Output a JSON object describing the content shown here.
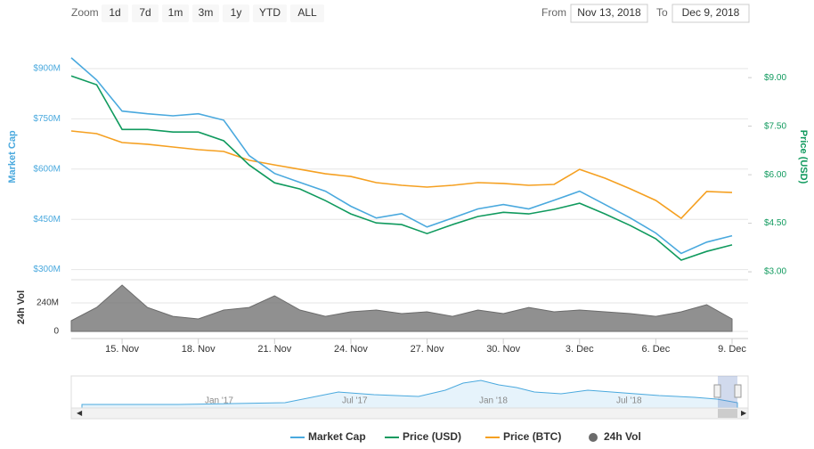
{
  "toolbar": {
    "zoom_label": "Zoom",
    "buttons": [
      "1d",
      "7d",
      "1m",
      "3m",
      "1y",
      "YTD",
      "ALL"
    ],
    "from_label": "From",
    "from_value": "Nov 13, 2018",
    "to_label": "To",
    "to_value": "Dec 9, 2018"
  },
  "navigator": {
    "labels": [
      "Jan '17",
      "Jul '17",
      "Jan '18",
      "Jul '18"
    ]
  },
  "chart_data": {
    "type": "line",
    "categories": [
      null,
      null,
      "15. Nov",
      null,
      null,
      "18. Nov",
      null,
      null,
      "21. Nov",
      null,
      null,
      "24. Nov",
      null,
      null,
      "27. Nov",
      null,
      null,
      "30. Nov",
      null,
      null,
      "3. Dec",
      null,
      null,
      "6. Dec",
      null,
      null,
      "9. Dec"
    ],
    "ylabel": "Market Cap",
    "y2label": "Price (USD)",
    "vol_label": "24h Vol",
    "ylim": [
      275000000,
      985000000
    ],
    "yticks": [
      {
        "value": 300000000,
        "label": "$300M"
      },
      {
        "value": 450000000,
        "label": "$450M"
      },
      {
        "value": 600000000,
        "label": "$600M"
      },
      {
        "value": 750000000,
        "label": "$750M"
      },
      {
        "value": 900000000,
        "label": "$900M"
      }
    ],
    "y2lim": [
      2.81,
      10.16
    ],
    "y2ticks": [
      {
        "value": 3,
        "label": "$3.00"
      },
      {
        "value": 4.5,
        "label": "$4.50"
      },
      {
        "value": 6,
        "label": "$6.00"
      },
      {
        "value": 7.5,
        "label": "$7.50"
      },
      {
        "value": 9,
        "label": "$9.00"
      }
    ],
    "y3lim": [
      0.0005,
      0.002
    ],
    "vol_ylim": [
      0,
      405000000
    ],
    "vol_yticks": [
      0,
      {
        "value": 240000000,
        "label": "240M"
      }
    ],
    "grid": true,
    "series": [
      {
        "name": "Market Cap",
        "color": "#4aa9de",
        "axis": "y",
        "values": [
          932000000,
          866000000,
          773000000,
          765000000,
          759000000,
          765000000,
          746000000,
          640000000,
          587000000,
          560000000,
          534000000,
          489000000,
          454000000,
          467000000,
          427000000,
          454000000,
          481000000,
          494000000,
          481000000,
          507000000,
          534000000,
          494000000,
          454000000,
          409000000,
          348000000,
          382000000,
          401000000
        ]
      },
      {
        "name": "Price (USD)",
        "color": "#109a5e",
        "axis": "y2",
        "values": [
          9.05,
          8.78,
          7.4,
          7.4,
          7.32,
          7.32,
          7.05,
          6.3,
          5.75,
          5.56,
          5.2,
          4.79,
          4.51,
          4.46,
          4.18,
          4.46,
          4.71,
          4.84,
          4.79,
          4.93,
          5.12,
          4.79,
          4.43,
          4.02,
          3.36,
          3.63,
          3.83
        ]
      },
      {
        "name": "Price (BTC)",
        "color": "#f5a021",
        "axis": "y3",
        "values": [
          0.001427,
          0.00141,
          0.001354,
          0.001343,
          0.001326,
          0.001309,
          0.001298,
          0.001242,
          0.001213,
          0.001185,
          0.001157,
          0.00114,
          0.001101,
          0.001084,
          0.001073,
          0.001084,
          0.001101,
          0.001096,
          0.001084,
          0.00109,
          0.001185,
          0.001129,
          0.001062,
          0.000989,
          0.000876,
          0.001045,
          0.001039
        ]
      },
      {
        "name": "24h Vol",
        "color": "#6b6b6b",
        "axis": "vol",
        "values": [
          90000000,
          202000000,
          390000000,
          202000000,
          127000000,
          105000000,
          180000000,
          202000000,
          300000000,
          180000000,
          127000000,
          165000000,
          180000000,
          150000000,
          165000000,
          127000000,
          180000000,
          150000000,
          202000000,
          165000000,
          180000000,
          165000000,
          150000000,
          127000000,
          165000000,
          225000000,
          105000000
        ]
      }
    ]
  }
}
